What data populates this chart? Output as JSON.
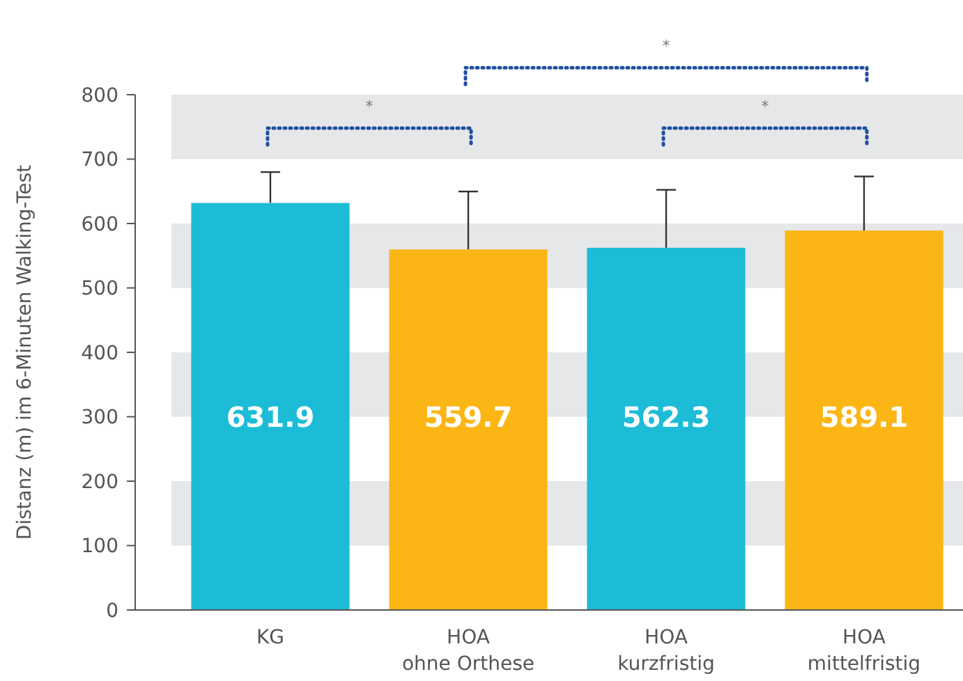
{
  "chart_data": {
    "type": "bar",
    "ylabel": "Distanz (m) im 6-Minuten Walking-Test",
    "categories": [
      "KG",
      "HOA\nohne Orthese",
      "HOA\nkurzfristig",
      "HOA\nmittelfristig"
    ],
    "values": [
      631.9,
      559.7,
      562.3,
      589.1
    ],
    "colors": [
      "#1cbcd7",
      "#fbb616",
      "#1cbcd7",
      "#fbb616"
    ],
    "errors": [
      48,
      90,
      90,
      84
    ],
    "data_labels": true,
    "ylim": [
      0,
      800
    ],
    "yticks": [
      0,
      100,
      200,
      300,
      400,
      500,
      600,
      700,
      800
    ],
    "bands": [
      {
        "axis": "y",
        "from": 100,
        "to": 200,
        "color": "#e6e7e9"
      },
      {
        "axis": "y",
        "from": 300,
        "to": 400,
        "color": "#e6e7e9"
      },
      {
        "axis": "y",
        "from": 500,
        "to": 600,
        "color": "#e6e7e9"
      },
      {
        "axis": "y",
        "from": 700,
        "to": 800,
        "color": "#e6e7e9"
      }
    ],
    "annotations": [
      "*",
      "*",
      "*"
    ]
  }
}
